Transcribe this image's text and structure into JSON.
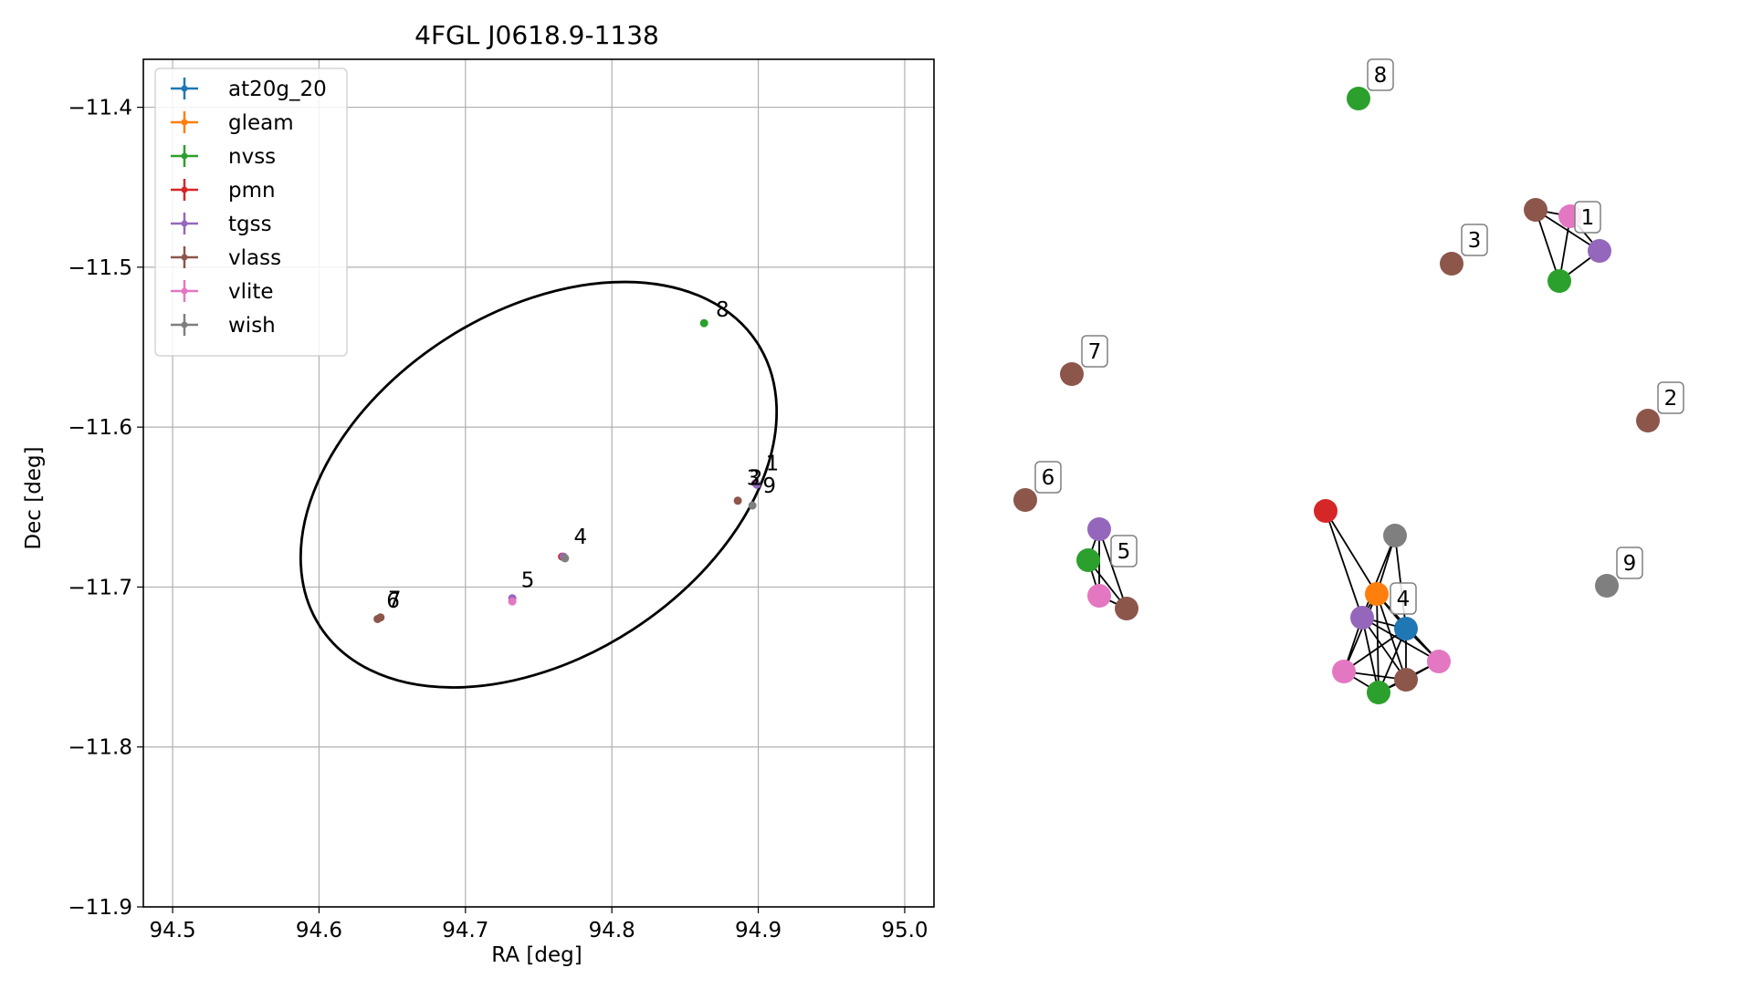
{
  "left_chart": {
    "type": "scatter",
    "title": "4FGL J0618.9-1138",
    "xlabel": "RA [deg]",
    "ylabel": "Dec [deg]",
    "xlim": [
      94.48,
      95.02
    ],
    "ylim": [
      -11.9,
      -11.37
    ],
    "grid": true,
    "legend_position": "top-left",
    "xticks": [
      94.5,
      94.6,
      94.7,
      94.8,
      94.9,
      95.0
    ],
    "xtick_labels": [
      "94.5",
      "94.6",
      "94.7",
      "94.8",
      "94.9",
      "95.0"
    ],
    "yticks": [
      -11.4,
      -11.5,
      -11.6,
      -11.7,
      -11.8,
      -11.9
    ],
    "ytick_labels": [
      "−11.4",
      "−11.5",
      "−11.6",
      "−11.7",
      "−11.8",
      "−11.9"
    ],
    "legend": [
      {
        "name": "at20g_20",
        "color": "#1f77b4"
      },
      {
        "name": "gleam",
        "color": "#ff7f0e"
      },
      {
        "name": "nvss",
        "color": "#2ca02c"
      },
      {
        "name": "pmn",
        "color": "#d62728"
      },
      {
        "name": "tgss",
        "color": "#9467bd"
      },
      {
        "name": "vlass",
        "color": "#8c564b"
      },
      {
        "name": "vlite",
        "color": "#e377c2"
      },
      {
        "name": "wish",
        "color": "#7f7f7f"
      }
    ],
    "points": [
      {
        "series": "nvss",
        "ra": 94.863,
        "dec": -11.535
      },
      {
        "series": "vlass",
        "ra": 94.886,
        "dec": -11.646
      },
      {
        "series": "vlite",
        "ra": 94.898,
        "dec": -11.635
      },
      {
        "series": "tgss",
        "ra": 94.899,
        "dec": -11.636
      },
      {
        "series": "wish",
        "ra": 94.896,
        "dec": -11.649
      },
      {
        "series": "pmn",
        "ra": 94.766,
        "dec": -11.681
      },
      {
        "series": "tgss",
        "ra": 94.767,
        "dec": -11.681
      },
      {
        "series": "wish",
        "ra": 94.768,
        "dec": -11.682
      },
      {
        "series": "tgss",
        "ra": 94.732,
        "dec": -11.707
      },
      {
        "series": "vlite",
        "ra": 94.732,
        "dec": -11.709
      },
      {
        "series": "vlass",
        "ra": 94.64,
        "dec": -11.72
      },
      {
        "series": "vlass",
        "ra": 94.642,
        "dec": -11.719
      }
    ],
    "labels": [
      {
        "text": "8",
        "ra": 94.871,
        "dec": -11.531
      },
      {
        "text": "1",
        "ra": 94.905,
        "dec": -11.627
      },
      {
        "text": "3",
        "ra": 94.892,
        "dec": -11.636
      },
      {
        "text": "2",
        "ra": 94.894,
        "dec": -11.636
      },
      {
        "text": "9",
        "ra": 94.903,
        "dec": -11.641
      },
      {
        "text": "4",
        "ra": 94.774,
        "dec": -11.673
      },
      {
        "text": "5",
        "ra": 94.738,
        "dec": -11.7
      },
      {
        "text": "6",
        "ra": 94.646,
        "dec": -11.713
      },
      {
        "text": "7",
        "ra": 94.647,
        "dec": -11.712
      }
    ],
    "ellipse": {
      "ra": 94.75,
      "dec": -11.636,
      "rx_deg": 0.178,
      "ry_deg": 0.108,
      "angle_deg": -33
    }
  },
  "graph": {
    "nodes": [
      {
        "id": "n8",
        "color": "#2ca02c",
        "label": "8"
      },
      {
        "id": "b1",
        "color": "#8c564b"
      },
      {
        "id": "p1",
        "color": "#e377c2",
        "label": "1"
      },
      {
        "id": "u1",
        "color": "#9467bd"
      },
      {
        "id": "g1",
        "color": "#2ca02c"
      },
      {
        "id": "b3",
        "color": "#8c564b",
        "label": "3"
      },
      {
        "id": "b7",
        "color": "#8c564b",
        "label": "7"
      },
      {
        "id": "b2",
        "color": "#8c564b",
        "label": "2"
      },
      {
        "id": "b6",
        "color": "#8c564b",
        "label": "6"
      },
      {
        "id": "u5",
        "color": "#9467bd"
      },
      {
        "id": "g5",
        "color": "#2ca02c",
        "label": "5"
      },
      {
        "id": "p5",
        "color": "#e377c2"
      },
      {
        "id": "b5",
        "color": "#8c564b"
      },
      {
        "id": "w9",
        "color": "#7f7f7f",
        "label": "9"
      },
      {
        "id": "r4",
        "color": "#d62728"
      },
      {
        "id": "w4",
        "color": "#7f7f7f"
      },
      {
        "id": "o4",
        "color": "#ff7f0e",
        "label": "4"
      },
      {
        "id": "u4",
        "color": "#9467bd"
      },
      {
        "id": "a4",
        "color": "#1f77b4"
      },
      {
        "id": "p4a",
        "color": "#e377c2"
      },
      {
        "id": "p4b",
        "color": "#e377c2"
      },
      {
        "id": "g4",
        "color": "#2ca02c"
      },
      {
        "id": "b4",
        "color": "#8c564b"
      }
    ],
    "edges": [
      [
        "b1",
        "p1"
      ],
      [
        "b1",
        "u1"
      ],
      [
        "b1",
        "g1"
      ],
      [
        "p1",
        "u1"
      ],
      [
        "p1",
        "g1"
      ],
      [
        "u1",
        "g1"
      ],
      [
        "u5",
        "g5"
      ],
      [
        "u5",
        "p5"
      ],
      [
        "u5",
        "b5"
      ],
      [
        "g5",
        "p5"
      ],
      [
        "g5",
        "b5"
      ],
      [
        "p5",
        "b5"
      ],
      [
        "r4",
        "o4"
      ],
      [
        "r4",
        "u4"
      ],
      [
        "w4",
        "o4"
      ],
      [
        "w4",
        "u4"
      ],
      [
        "w4",
        "a4"
      ],
      [
        "o4",
        "u4"
      ],
      [
        "o4",
        "a4"
      ],
      [
        "o4",
        "p4a"
      ],
      [
        "o4",
        "g4"
      ],
      [
        "o4",
        "b4"
      ],
      [
        "o4",
        "p4b"
      ],
      [
        "u4",
        "a4"
      ],
      [
        "u4",
        "p4a"
      ],
      [
        "u4",
        "g4"
      ],
      [
        "u4",
        "b4"
      ],
      [
        "u4",
        "p4b"
      ],
      [
        "a4",
        "p4a"
      ],
      [
        "a4",
        "g4"
      ],
      [
        "a4",
        "b4"
      ],
      [
        "a4",
        "p4b"
      ],
      [
        "p4a",
        "g4"
      ],
      [
        "p4a",
        "b4"
      ],
      [
        "g4",
        "b4"
      ],
      [
        "g4",
        "p4b"
      ],
      [
        "b4",
        "p4b"
      ]
    ]
  }
}
